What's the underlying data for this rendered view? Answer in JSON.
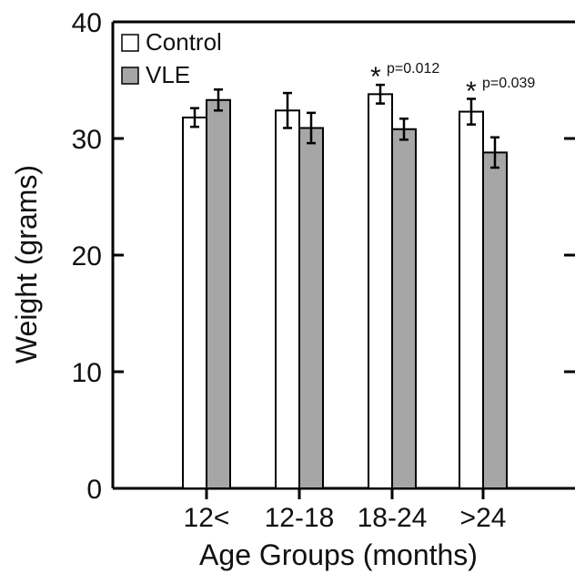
{
  "chart_data": {
    "type": "bar",
    "title": "",
    "xlabel": "Age Groups (months)",
    "ylabel": "Weight (grams)",
    "categories": [
      "12<",
      "12-18",
      "18-24",
      ">24"
    ],
    "ylim": [
      0,
      40
    ],
    "yticks": [
      0,
      10,
      20,
      30,
      40
    ],
    "grid": false,
    "legend_position": "top-left",
    "series": [
      {
        "name": "Control",
        "color": "#ffffff",
        "values": [
          31.8,
          32.4,
          33.8,
          32.3
        ],
        "errors": [
          0.8,
          1.5,
          0.8,
          1.1
        ]
      },
      {
        "name": "VLE",
        "color": "#a6a6a6",
        "values": [
          33.3,
          30.9,
          30.8,
          28.8
        ],
        "errors": [
          0.9,
          1.3,
          0.9,
          1.3
        ]
      }
    ],
    "annotations": [
      {
        "category_index": 2,
        "star": "*",
        "text": "p=0.012"
      },
      {
        "category_index": 3,
        "star": "*",
        "text": "p=0.039"
      }
    ]
  }
}
